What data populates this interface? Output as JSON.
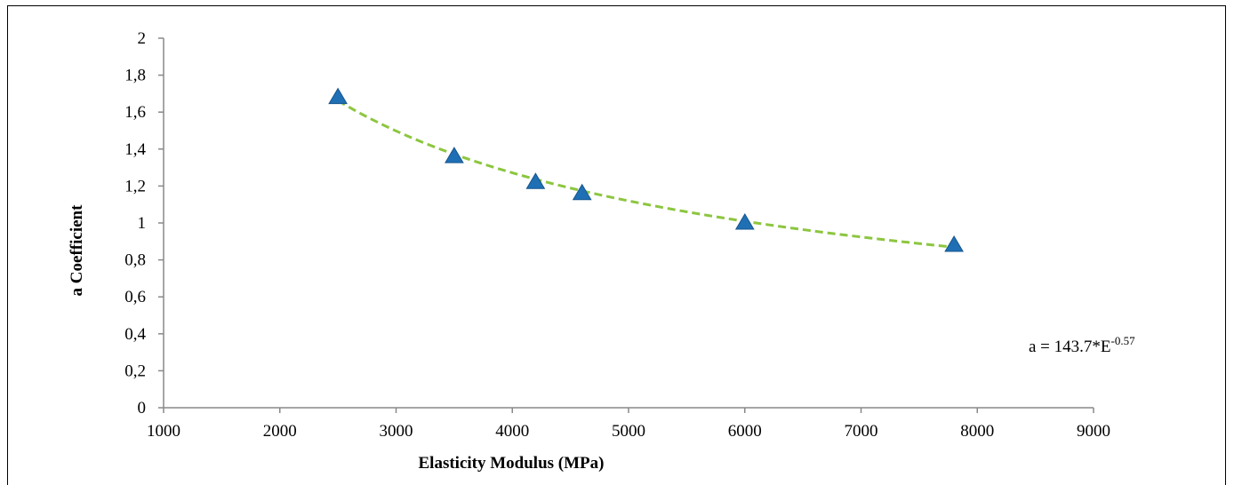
{
  "chart_data": {
    "type": "scatter",
    "xlabel": "Elasticity Modulus (MPa)",
    "ylabel": "a Coefficient",
    "xlim": [
      1000,
      9000
    ],
    "ylim": [
      0,
      2
    ],
    "x_ticks": [
      "1000",
      "2000",
      "3000",
      "4000",
      "5000",
      "6000",
      "7000",
      "8000",
      "9000"
    ],
    "y_ticks": [
      "0",
      "0,2",
      "0,4",
      "0,6",
      "0,8",
      "1",
      "1,2",
      "1,4",
      "1,6",
      "1,8",
      "2"
    ],
    "grid": false,
    "series": [
      {
        "marker": "triangle",
        "color": "#1f6fb5",
        "points": [
          {
            "x": 2500,
            "y": 1.68
          },
          {
            "x": 3500,
            "y": 1.36
          },
          {
            "x": 4200,
            "y": 1.22
          },
          {
            "x": 4600,
            "y": 1.16
          },
          {
            "x": 6000,
            "y": 1.0
          },
          {
            "x": 7800,
            "y": 0.88
          }
        ]
      }
    ],
    "trendline": {
      "type": "power",
      "coefficient": 143.7,
      "exponent": -0.57,
      "x_range": [
        2500,
        7800
      ],
      "color": "#8cc63f",
      "style": "dashed"
    },
    "annotation": {
      "text_main": "a = 143.7*E",
      "text_sup": "-0.57"
    }
  }
}
